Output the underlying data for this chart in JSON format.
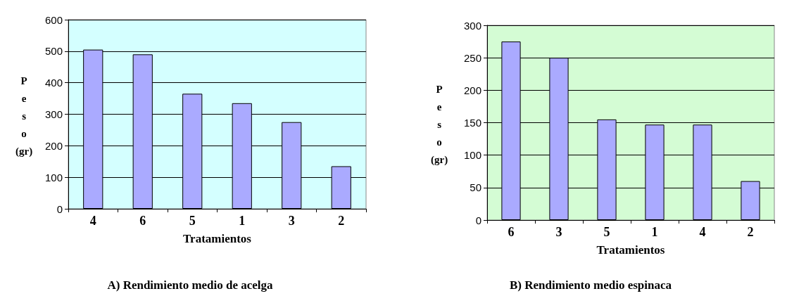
{
  "chart_data": [
    {
      "type": "bar",
      "title": "A) Rendimiento medio de acelga",
      "xlabel": "Tratamientos",
      "ylabel": "Peso (gr)",
      "categories": [
        "4",
        "6",
        "5",
        "1",
        "3",
        "2"
      ],
      "values": [
        505,
        490,
        365,
        335,
        275,
        135
      ],
      "color": "#aaaaff",
      "ylim": [
        0,
        600
      ],
      "yticks": [
        0,
        100,
        200,
        300,
        400,
        500,
        600
      ],
      "grid": "y"
    },
    {
      "type": "bar",
      "title": "B) Rendimiento medio espinaca",
      "xlabel": "Tratamientos",
      "ylabel": "Peso (gr)",
      "categories": [
        "6",
        "3",
        "5",
        "1",
        "4",
        "2"
      ],
      "values": [
        275,
        250,
        155,
        147,
        147,
        60
      ],
      "color": "#aaaaff",
      "ylim": [
        0,
        300
      ],
      "yticks": [
        0,
        50,
        100,
        150,
        200,
        250,
        300
      ],
      "grid": "y"
    }
  ]
}
